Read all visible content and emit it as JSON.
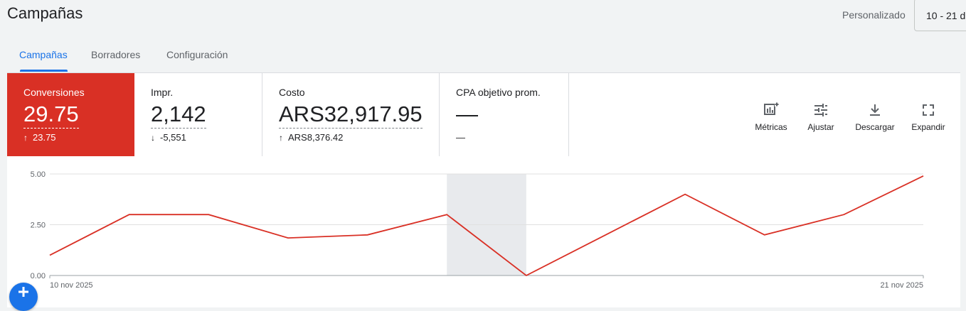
{
  "header": {
    "title": "Campañas",
    "date_label": "Personalizado",
    "date_range": "10 - 21 d"
  },
  "tabs": [
    {
      "label": "Campañas",
      "active": true
    },
    {
      "label": "Borradores",
      "active": false
    },
    {
      "label": "Configuración",
      "active": false
    }
  ],
  "scorecards": [
    {
      "label": "Conversiones",
      "value": "29.75",
      "delta": "23.75",
      "direction": "up"
    },
    {
      "label": "Impr.",
      "value": "2,142",
      "delta": "-5,551",
      "direction": "down"
    },
    {
      "label": "Costo",
      "value": "ARS32,917.95",
      "delta": "ARS8,376.42",
      "direction": "up"
    },
    {
      "label": "CPA objetivo prom.",
      "value": "—",
      "delta": "—",
      "direction": "none"
    }
  ],
  "toolbar": {
    "metrics": "Métricas",
    "adjust": "Ajustar",
    "download": "Descargar",
    "expand": "Expandir"
  },
  "colors": {
    "accent": "#1a73e8",
    "series": "#d93025",
    "highlight_band": "#e8eaed"
  },
  "chart_data": {
    "type": "line",
    "x": [
      "10 nov 2025",
      "11 nov 2025",
      "12 nov 2025",
      "13 nov 2025",
      "14 nov 2025",
      "15 nov 2025",
      "16 nov 2025",
      "17 nov 2025",
      "18 nov 2025",
      "19 nov 2025",
      "20 nov 2025",
      "21 nov 2025"
    ],
    "x_tick_labels": [
      "10 nov 2025",
      "21 nov 2025"
    ],
    "series": [
      {
        "values": [
          1,
          3,
          3,
          1.85,
          2,
          3,
          0,
          2,
          4,
          2,
          3,
          4.9
        ]
      }
    ],
    "y_ticks": [
      "0.00",
      "2.50",
      "5.00"
    ],
    "ylim": [
      0,
      5
    ],
    "highlight_range": [
      "15 nov 2025",
      "16 nov 2025"
    ],
    "grid": true
  }
}
